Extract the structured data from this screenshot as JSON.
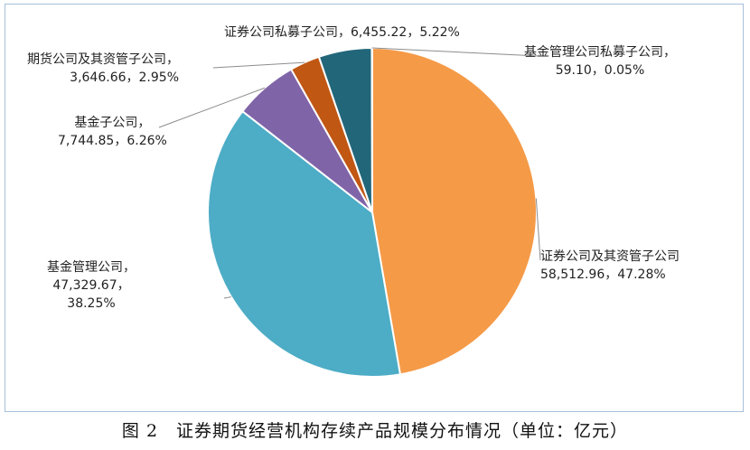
{
  "caption": "图 2　证券期货经营机构存续产品规模分布情况（单位：亿元）",
  "chart_data": {
    "type": "pie",
    "title": "",
    "unit": "亿元",
    "slices": [
      {
        "name": "证券公司及其资管子公司",
        "value": 58512.96,
        "value_label": "58,512.96",
        "percent": "47.28%",
        "color": "#f59a47"
      },
      {
        "name": "基金管理公司",
        "value": 47329.67,
        "value_label": "47,329.67",
        "percent": "38.25%",
        "color": "#4dacc6"
      },
      {
        "name": "基金子公司",
        "value": 7744.85,
        "value_label": "7,744.85",
        "percent": "6.26%",
        "color": "#8064a8"
      },
      {
        "name": "期货公司及其资管子公司",
        "value": 3646.66,
        "value_label": "3,646.66",
        "percent": "2.95%",
        "color": "#c05713"
      },
      {
        "name": "证券公司私募子公司",
        "value": 6455.22,
        "value_label": "6,455.22",
        "percent": "5.22%",
        "color": "#22667a"
      },
      {
        "name": "基金管理公司私募子公司",
        "value": 59.1,
        "value_label": "59.10",
        "percent": "0.05%",
        "color": "#1f4e79"
      }
    ]
  }
}
